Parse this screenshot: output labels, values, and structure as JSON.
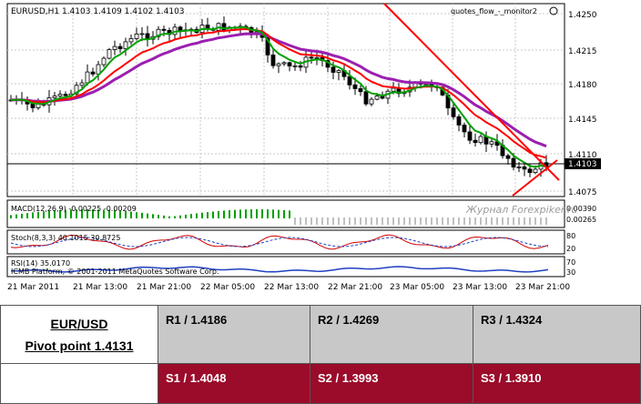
{
  "chart": {
    "symbol_info": "EURUSD,H1  1.4103 1.4109 1.4102 1.4103",
    "indicator_tag": "quotes_flow_-_monitor2",
    "current_price": "1.4103",
    "price_axis": [
      "1.4250",
      "1.4215",
      "1.4180",
      "1.4145",
      "1.4110",
      "1.4075"
    ],
    "macd_label": "MACD(12,26,9) -0.00225 -0.00209",
    "macd_axis": [
      "0.00390",
      "0.00265"
    ],
    "stoch_label": "Stoch(8,3,3) 40.1015 30.8725",
    "stoch_axis": [
      "80",
      "20"
    ],
    "rsi_label": "RSI(14) 35.0170",
    "rsi_axis": [
      "70",
      "30"
    ],
    "copyright": "ICMB Platform, © 2001-2011 MetaQuotes Software Corp.",
    "watermark": "Журнал Forexpiker.ru",
    "time_axis": [
      "21 Mar 2011",
      "21 Mar 13:00",
      "21 Mar 21:00",
      "22 Mar 05:00",
      "22 Mar 13:00",
      "22 Mar 21:00",
      "23 Mar 05:00",
      "23 Mar 13:00",
      "23 Mar 21:00"
    ],
    "colors": {
      "ema_fast": "#00a000",
      "ema_mid": "#ff0000",
      "ema_slow": "#9b1fb0",
      "trend": "#ff0000",
      "price_label_bg": "#000000"
    }
  },
  "pivot_table": {
    "pair": "EUR/USD",
    "pivot": "Pivot point 1.4131",
    "r1": "R1 / 1.4186",
    "r2": "R2 / 1.4269",
    "r3": "R3 / 1.4324",
    "s1": "S1 / 1.4048",
    "s2": "S2 / 1.3993",
    "s3": "S3 / 1.3910",
    "colors": {
      "resistance_bg": "#c8c8c8",
      "support_bg": "#9b0b2a"
    }
  }
}
